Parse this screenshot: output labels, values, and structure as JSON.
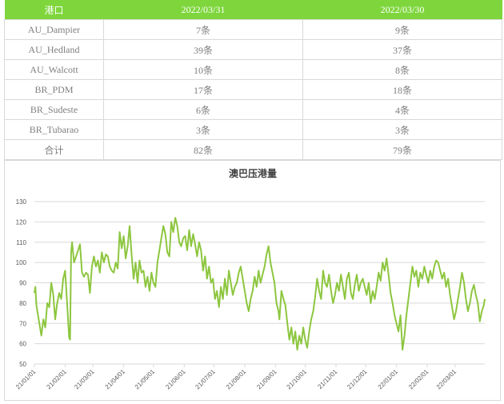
{
  "table": {
    "headers": [
      "港口",
      "2022/03/31",
      "2022/03/30"
    ],
    "rows": [
      [
        "AU_Dampier",
        "7条",
        "9条"
      ],
      [
        "AU_Hedland",
        "39条",
        "37条"
      ],
      [
        "AU_Walcott",
        "10条",
        "8条"
      ],
      [
        "BR_PDM",
        "17条",
        "18条"
      ],
      [
        "BR_Sudeste",
        "6条",
        "4条"
      ],
      [
        "BR_Tubarao",
        "3条",
        "3条"
      ],
      [
        "合计",
        "82条",
        "79条"
      ]
    ]
  },
  "colors": {
    "header_bg": "#7ed63c",
    "line": "#8dc63f",
    "grid": "#d9d9d9"
  },
  "chart_data": {
    "type": "line",
    "title": "澳巴压港量",
    "xlabel": "",
    "ylabel": "",
    "ylim": [
      50,
      130
    ],
    "yticks": [
      50,
      60,
      70,
      80,
      90,
      100,
      110,
      120,
      130
    ],
    "xlim": [
      "2021-01-01",
      "2022-03-31"
    ],
    "xticks": [
      "21/01/01",
      "21/02/01",
      "21/03/01",
      "21/04/01",
      "21/05/01",
      "21/06/01",
      "21/07/01",
      "21/08/01",
      "21/09/01",
      "21/10/01",
      "21/11/01",
      "21/12/01",
      "22/01/01",
      "22/02/01",
      "22/03/01"
    ],
    "grid": "horizontal",
    "legend": "none",
    "series": [
      {
        "name": "",
        "points": [
          [
            "2021-01-01",
            85
          ],
          [
            "2021-01-02",
            88
          ],
          [
            "2021-01-03",
            79
          ],
          [
            "2021-01-04",
            76
          ],
          [
            "2021-01-06",
            70
          ],
          [
            "2021-01-08",
            64
          ],
          [
            "2021-01-10",
            72
          ],
          [
            "2021-01-12",
            68
          ],
          [
            "2021-01-14",
            80
          ],
          [
            "2021-01-16",
            78
          ],
          [
            "2021-01-18",
            90
          ],
          [
            "2021-01-20",
            84
          ],
          [
            "2021-01-22",
            72
          ],
          [
            "2021-01-24",
            80
          ],
          [
            "2021-01-26",
            85
          ],
          [
            "2021-01-28",
            82
          ],
          [
            "2021-01-30",
            92
          ],
          [
            "2021-02-01",
            96
          ],
          [
            "2021-02-03",
            80
          ],
          [
            "2021-02-05",
            63
          ],
          [
            "2021-02-06",
            62
          ],
          [
            "2021-02-07",
            105
          ],
          [
            "2021-02-08",
            110
          ],
          [
            "2021-02-10",
            100
          ],
          [
            "2021-02-12",
            103
          ],
          [
            "2021-02-14",
            106
          ],
          [
            "2021-02-16",
            109
          ],
          [
            "2021-02-18",
            95
          ],
          [
            "2021-02-20",
            93
          ],
          [
            "2021-02-22",
            95
          ],
          [
            "2021-02-24",
            94
          ],
          [
            "2021-02-26",
            85
          ],
          [
            "2021-02-28",
            98
          ],
          [
            "2021-03-02",
            103
          ],
          [
            "2021-03-04",
            98
          ],
          [
            "2021-03-06",
            101
          ],
          [
            "2021-03-08",
            95
          ],
          [
            "2021-03-10",
            105
          ],
          [
            "2021-03-12",
            100
          ],
          [
            "2021-03-14",
            104
          ],
          [
            "2021-03-16",
            103
          ],
          [
            "2021-03-18",
            98
          ],
          [
            "2021-03-20",
            96
          ],
          [
            "2021-03-22",
            95
          ],
          [
            "2021-03-24",
            100
          ],
          [
            "2021-03-26",
            97
          ],
          [
            "2021-03-28",
            115
          ],
          [
            "2021-03-30",
            107
          ],
          [
            "2021-04-01",
            113
          ],
          [
            "2021-04-03",
            102
          ],
          [
            "2021-04-05",
            108
          ],
          [
            "2021-04-07",
            118
          ],
          [
            "2021-04-09",
            104
          ],
          [
            "2021-04-11",
            92
          ],
          [
            "2021-04-13",
            100
          ],
          [
            "2021-04-15",
            90
          ],
          [
            "2021-04-17",
            101
          ],
          [
            "2021-04-19",
            95
          ],
          [
            "2021-04-21",
            96
          ],
          [
            "2021-04-23",
            88
          ],
          [
            "2021-04-25",
            93
          ],
          [
            "2021-04-27",
            86
          ],
          [
            "2021-04-29",
            95
          ],
          [
            "2021-05-01",
            90
          ],
          [
            "2021-05-03",
            88
          ],
          [
            "2021-05-05",
            100
          ],
          [
            "2021-05-07",
            106
          ],
          [
            "2021-05-09",
            112
          ],
          [
            "2021-05-11",
            118
          ],
          [
            "2021-05-13",
            114
          ],
          [
            "2021-05-15",
            105
          ],
          [
            "2021-05-17",
            103
          ],
          [
            "2021-05-19",
            120
          ],
          [
            "2021-05-21",
            115
          ],
          [
            "2021-05-23",
            122
          ],
          [
            "2021-05-25",
            118
          ],
          [
            "2021-05-27",
            110
          ],
          [
            "2021-05-29",
            108
          ],
          [
            "2021-05-31",
            112
          ],
          [
            "2021-06-02",
            113
          ],
          [
            "2021-06-04",
            106
          ],
          [
            "2021-06-06",
            116
          ],
          [
            "2021-06-08",
            108
          ],
          [
            "2021-06-10",
            114
          ],
          [
            "2021-06-12",
            109
          ],
          [
            "2021-06-14",
            103
          ],
          [
            "2021-06-16",
            110
          ],
          [
            "2021-06-18",
            106
          ],
          [
            "2021-06-20",
            96
          ],
          [
            "2021-06-22",
            103
          ],
          [
            "2021-06-24",
            92
          ],
          [
            "2021-06-26",
            98
          ],
          [
            "2021-06-28",
            90
          ],
          [
            "2021-06-30",
            92
          ],
          [
            "2021-07-02",
            82
          ],
          [
            "2021-07-04",
            86
          ],
          [
            "2021-07-06",
            78
          ],
          [
            "2021-07-08",
            88
          ],
          [
            "2021-07-10",
            82
          ],
          [
            "2021-07-12",
            92
          ],
          [
            "2021-07-14",
            84
          ],
          [
            "2021-07-16",
            96
          ],
          [
            "2021-07-18",
            90
          ],
          [
            "2021-07-20",
            84
          ],
          [
            "2021-07-22",
            88
          ],
          [
            "2021-07-24",
            90
          ],
          [
            "2021-07-26",
            95
          ],
          [
            "2021-07-28",
            98
          ],
          [
            "2021-07-30",
            92
          ],
          [
            "2021-08-01",
            86
          ],
          [
            "2021-08-03",
            80
          ],
          [
            "2021-08-05",
            76
          ],
          [
            "2021-08-07",
            82
          ],
          [
            "2021-08-09",
            86
          ],
          [
            "2021-08-11",
            93
          ],
          [
            "2021-08-13",
            88
          ],
          [
            "2021-08-15",
            96
          ],
          [
            "2021-08-17",
            90
          ],
          [
            "2021-08-19",
            94
          ],
          [
            "2021-08-21",
            98
          ],
          [
            "2021-08-23",
            104
          ],
          [
            "2021-08-25",
            108
          ],
          [
            "2021-08-27",
            100
          ],
          [
            "2021-08-29",
            95
          ],
          [
            "2021-08-31",
            90
          ],
          [
            "2021-09-02",
            80
          ],
          [
            "2021-09-04",
            76
          ],
          [
            "2021-09-05",
            72
          ],
          [
            "2021-09-07",
            86
          ],
          [
            "2021-09-09",
            82
          ],
          [
            "2021-09-11",
            79
          ],
          [
            "2021-09-13",
            70
          ],
          [
            "2021-09-15",
            62
          ],
          [
            "2021-09-17",
            68
          ],
          [
            "2021-09-19",
            60
          ],
          [
            "2021-09-21",
            66
          ],
          [
            "2021-09-23",
            57
          ],
          [
            "2021-09-25",
            64
          ],
          [
            "2021-09-27",
            60
          ],
          [
            "2021-09-29",
            68
          ],
          [
            "2021-10-01",
            62
          ],
          [
            "2021-10-03",
            58
          ],
          [
            "2021-10-05",
            66
          ],
          [
            "2021-10-07",
            72
          ],
          [
            "2021-10-09",
            76
          ],
          [
            "2021-10-11",
            83
          ],
          [
            "2021-10-13",
            92
          ],
          [
            "2021-10-15",
            86
          ],
          [
            "2021-10-17",
            82
          ],
          [
            "2021-10-19",
            96
          ],
          [
            "2021-10-21",
            90
          ],
          [
            "2021-10-23",
            88
          ],
          [
            "2021-10-25",
            94
          ],
          [
            "2021-10-27",
            86
          ],
          [
            "2021-10-29",
            80
          ],
          [
            "2021-10-31",
            84
          ],
          [
            "2021-11-02",
            90
          ],
          [
            "2021-11-04",
            86
          ],
          [
            "2021-11-06",
            94
          ],
          [
            "2021-11-08",
            88
          ],
          [
            "2021-11-10",
            82
          ],
          [
            "2021-11-12",
            92
          ],
          [
            "2021-11-14",
            95
          ],
          [
            "2021-11-16",
            85
          ],
          [
            "2021-11-18",
            82
          ],
          [
            "2021-11-20",
            89
          ],
          [
            "2021-11-22",
            94
          ],
          [
            "2021-11-24",
            86
          ],
          [
            "2021-11-26",
            90
          ],
          [
            "2021-11-28",
            92
          ],
          [
            "2021-11-30",
            88
          ],
          [
            "2021-12-02",
            84
          ],
          [
            "2021-12-04",
            90
          ],
          [
            "2021-12-06",
            80
          ],
          [
            "2021-12-08",
            86
          ],
          [
            "2021-12-10",
            82
          ],
          [
            "2021-12-12",
            88
          ],
          [
            "2021-12-14",
            95
          ],
          [
            "2021-12-16",
            91
          ],
          [
            "2021-12-18",
            100
          ],
          [
            "2021-12-20",
            96
          ],
          [
            "2021-12-22",
            102
          ],
          [
            "2021-12-24",
            94
          ],
          [
            "2021-12-26",
            85
          ],
          [
            "2021-12-28",
            80
          ],
          [
            "2021-12-30",
            74
          ],
          [
            "2022-01-01",
            70
          ],
          [
            "2022-01-03",
            66
          ],
          [
            "2022-01-05",
            74
          ],
          [
            "2022-01-07",
            57
          ],
          [
            "2022-01-09",
            64
          ],
          [
            "2022-01-11",
            74
          ],
          [
            "2022-01-13",
            82
          ],
          [
            "2022-01-15",
            90
          ],
          [
            "2022-01-17",
            98
          ],
          [
            "2022-01-19",
            93
          ],
          [
            "2022-01-21",
            96
          ],
          [
            "2022-01-23",
            88
          ],
          [
            "2022-01-25",
            95
          ],
          [
            "2022-01-27",
            92
          ],
          [
            "2022-01-29",
            98
          ],
          [
            "2022-01-31",
            94
          ],
          [
            "2022-02-02",
            90
          ],
          [
            "2022-02-04",
            96
          ],
          [
            "2022-02-06",
            92
          ],
          [
            "2022-02-08",
            98
          ],
          [
            "2022-02-10",
            101
          ],
          [
            "2022-02-12",
            100
          ],
          [
            "2022-02-14",
            96
          ],
          [
            "2022-02-16",
            92
          ],
          [
            "2022-02-18",
            95
          ],
          [
            "2022-02-20",
            88
          ],
          [
            "2022-02-22",
            92
          ],
          [
            "2022-02-24",
            84
          ],
          [
            "2022-02-26",
            78
          ],
          [
            "2022-02-28",
            72
          ],
          [
            "2022-03-02",
            76
          ],
          [
            "2022-03-04",
            82
          ],
          [
            "2022-03-06",
            88
          ],
          [
            "2022-03-08",
            95
          ],
          [
            "2022-03-10",
            90
          ],
          [
            "2022-03-12",
            82
          ],
          [
            "2022-03-14",
            76
          ],
          [
            "2022-03-16",
            80
          ],
          [
            "2022-03-18",
            86
          ],
          [
            "2022-03-20",
            89
          ],
          [
            "2022-03-22",
            84
          ],
          [
            "2022-03-24",
            80
          ],
          [
            "2022-03-26",
            71
          ],
          [
            "2022-03-28",
            76
          ],
          [
            "2022-03-30",
            79
          ],
          [
            "2022-03-31",
            82
          ]
        ]
      }
    ]
  }
}
